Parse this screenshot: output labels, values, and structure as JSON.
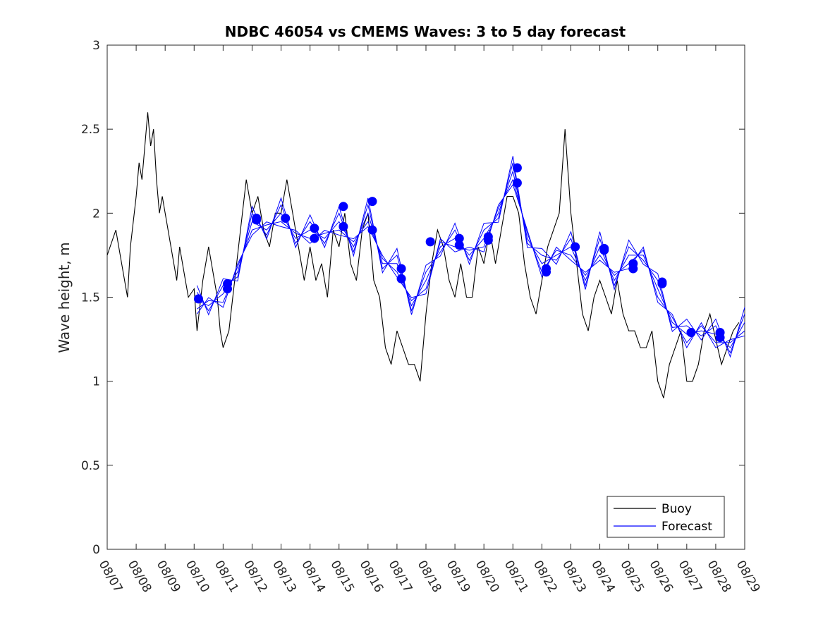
{
  "chart_data": {
    "type": "line",
    "title": "NDBC 46054 vs CMEMS Waves: 3 to 5 day forecast",
    "xlabel": "",
    "ylabel": "Wave height, m",
    "ylim": [
      0,
      3
    ],
    "yticks": [
      0,
      0.5,
      1,
      1.5,
      2,
      2.5,
      3
    ],
    "ytick_labels": [
      "0",
      "0.5",
      "1",
      "1.5",
      "2",
      "2.5",
      "3"
    ],
    "xlim_days": [
      0,
      22
    ],
    "xtick_labels": [
      "08/07",
      "08/08",
      "08/09",
      "08/10",
      "08/11",
      "08/12",
      "08/13",
      "08/14",
      "08/15",
      "08/16",
      "08/17",
      "08/18",
      "08/19",
      "08/20",
      "08/21",
      "08/22",
      "08/23",
      "08/24",
      "08/25",
      "08/26",
      "08/27",
      "08/28",
      "08/29"
    ],
    "legend": {
      "position": "bottom-right",
      "entries": [
        {
          "label": "Buoy",
          "color": "#000000"
        },
        {
          "label": "Forecast",
          "color": "#0000ff"
        }
      ]
    },
    "colors": {
      "buoy": "#000000",
      "forecast": "#0000ff",
      "markers": "#0000ff"
    },
    "series": [
      {
        "name": "Buoy",
        "x": [
          0,
          0.1,
          0.3,
          0.5,
          0.7,
          0.8,
          1.0,
          1.1,
          1.2,
          1.3,
          1.4,
          1.5,
          1.6,
          1.7,
          1.8,
          1.9,
          2.0,
          2.2,
          2.4,
          2.5,
          2.7,
          2.8,
          3.0,
          3.1,
          3.3,
          3.5,
          3.6,
          3.8,
          3.9,
          4.0,
          4.2,
          4.4,
          4.6,
          4.8,
          5.0,
          5.2,
          5.4,
          5.6,
          5.8,
          6.0,
          6.2,
          6.4,
          6.6,
          6.8,
          7.0,
          7.2,
          7.4,
          7.6,
          7.8,
          8.0,
          8.2,
          8.4,
          8.6,
          8.8,
          9.0,
          9.2,
          9.4,
          9.6,
          9.8,
          10.0,
          10.2,
          10.4,
          10.6,
          10.8,
          11.0,
          11.2,
          11.4,
          11.6,
          11.8,
          12.0,
          12.2,
          12.4,
          12.6,
          12.8,
          13.0,
          13.2,
          13.4,
          13.6,
          13.8,
          14.0,
          14.2,
          14.4,
          14.6,
          14.8,
          15.0,
          15.2,
          15.4,
          15.6,
          15.8,
          16.0,
          16.2,
          16.4,
          16.6,
          16.8,
          17.0,
          17.2,
          17.4,
          17.6,
          17.8,
          18.0,
          18.2,
          18.4,
          18.6,
          18.8,
          19.0,
          19.2,
          19.4,
          19.6,
          19.8,
          20.0,
          20.2,
          20.4,
          20.6,
          20.8,
          21.0,
          21.2,
          21.4,
          21.6,
          21.8
        ],
        "y": [
          1.75,
          1.8,
          1.9,
          1.7,
          1.5,
          1.8,
          2.1,
          2.3,
          2.2,
          2.4,
          2.6,
          2.4,
          2.5,
          2.2,
          2.0,
          2.1,
          2.0,
          1.8,
          1.6,
          1.8,
          1.6,
          1.5,
          1.55,
          1.3,
          1.6,
          1.8,
          1.7,
          1.5,
          1.3,
          1.2,
          1.3,
          1.6,
          1.9,
          2.2,
          2.0,
          2.1,
          1.9,
          1.8,
          2.0,
          2.0,
          2.2,
          2.0,
          1.8,
          1.6,
          1.8,
          1.6,
          1.7,
          1.5,
          1.9,
          1.8,
          2.0,
          1.7,
          1.6,
          1.9,
          2.0,
          1.6,
          1.5,
          1.2,
          1.1,
          1.3,
          1.2,
          1.1,
          1.1,
          1.0,
          1.4,
          1.7,
          1.9,
          1.8,
          1.6,
          1.5,
          1.7,
          1.5,
          1.5,
          1.8,
          1.7,
          1.9,
          1.7,
          1.9,
          2.1,
          2.1,
          2.0,
          1.7,
          1.5,
          1.4,
          1.6,
          1.8,
          1.9,
          2.0,
          2.5,
          2.0,
          1.7,
          1.4,
          1.3,
          1.5,
          1.6,
          1.5,
          1.4,
          1.6,
          1.4,
          1.3,
          1.3,
          1.2,
          1.2,
          1.3,
          1.0,
          0.9,
          1.1,
          1.2,
          1.3,
          1.0,
          1.0,
          1.1,
          1.3,
          1.4,
          1.25,
          1.1,
          1.2,
          1.3,
          1.35
        ]
      },
      {
        "name": "Forecast",
        "x": [
          3.1,
          3.5,
          4.0,
          4.5,
          5.0,
          5.5,
          6.0,
          6.5,
          7.0,
          7.5,
          8.0,
          8.5,
          9.0,
          9.5,
          10.0,
          10.5,
          11.0,
          11.5,
          12.0,
          12.5,
          13.0,
          13.5,
          14.0,
          14.5,
          15.0,
          15.5,
          16.0,
          16.5,
          17.0,
          17.5,
          18.0,
          18.5,
          19.0,
          19.5,
          20.0,
          20.5,
          21.0,
          21.5,
          22.0
        ],
        "y": [
          1.48,
          1.45,
          1.52,
          1.65,
          1.95,
          1.9,
          2.0,
          1.85,
          1.9,
          1.85,
          1.95,
          1.8,
          2.0,
          1.7,
          1.7,
          1.45,
          1.6,
          1.8,
          1.85,
          1.75,
          1.85,
          2.0,
          2.25,
          1.85,
          1.7,
          1.75,
          1.8,
          1.6,
          1.8,
          1.6,
          1.75,
          1.75,
          1.55,
          1.35,
          1.28,
          1.3,
          1.28,
          1.2,
          1.35
        ]
      }
    ],
    "markers": {
      "x": [
        3.15,
        4.15,
        4.15,
        5.15,
        5.15,
        6.15,
        7.15,
        7.15,
        8.15,
        8.15,
        9.15,
        9.15,
        10.15,
        10.15,
        11.15,
        12.15,
        12.15,
        13.15,
        13.15,
        14.15,
        14.15,
        15.15,
        15.15,
        16.15,
        17.15,
        17.15,
        18.15,
        18.15,
        19.15,
        19.15,
        20.15,
        21.15,
        21.15
      ],
      "y": [
        1.49,
        1.58,
        1.55,
        1.96,
        1.97,
        1.97,
        1.91,
        1.85,
        1.92,
        2.04,
        1.9,
        2.07,
        1.67,
        1.61,
        1.83,
        1.81,
        1.85,
        1.84,
        1.86,
        2.27,
        2.18,
        1.65,
        1.67,
        1.8,
        1.79,
        1.78,
        1.67,
        1.7,
        1.58,
        1.59,
        1.29,
        1.29,
        1.26
      ]
    }
  }
}
